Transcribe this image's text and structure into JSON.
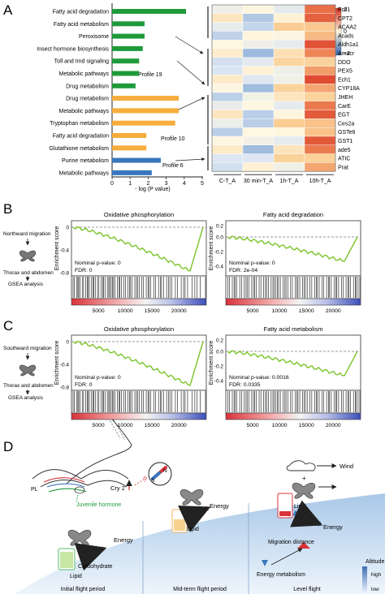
{
  "panel_letters": [
    "A",
    "B",
    "C",
    "D"
  ],
  "panelA": {
    "bar_labels": [
      "Fatty acid degradation",
      "Fatty acid metabolism",
      "Peroxisome",
      "Insect hormone biosynthesis",
      "Toll and Imd signaling",
      "Metabolic pathways",
      "Drug metabolism",
      "Drug metabolism",
      "Metabolic pathways",
      "Tryptophan metabolism",
      "Fatty acid degradation",
      "Glutathione metabolism",
      "Purine metabolism",
      "Metabolic pathways"
    ],
    "bar_values": [
      4.1,
      1.8,
      1.8,
      1.7,
      1.5,
      1.5,
      1.3,
      3.7,
      3.7,
      3.5,
      1.9,
      1.9,
      2.7,
      2.2
    ],
    "bar_groups": [
      "green",
      "green",
      "green",
      "green",
      "green",
      "green",
      "green",
      "orange",
      "orange",
      "orange",
      "orange",
      "orange",
      "blue",
      "blue"
    ],
    "colors": {
      "green": "#1f9a3a",
      "orange": "#f7ad3c",
      "blue": "#3877bd"
    },
    "profile_labels": [
      "Profile 19",
      "Profile 10",
      "Profile 6"
    ],
    "xaxis_ticks": [
      "0",
      "1",
      "2",
      "3",
      "4",
      "5"
    ],
    "xaxis_label": "- log (P value)",
    "genes": [
      "Ecil1",
      "CPT2",
      "ACAA2",
      "Acads",
      "Aldh1a1",
      "Amacr",
      "DDO",
      "PEX5",
      "Ech1",
      "CYP18A",
      "JHEH",
      "CarE",
      "EGT",
      "Ces2a",
      "GSTe6",
      "GST1",
      "ade5",
      "ATIC",
      "Prat"
    ],
    "heat_columns": [
      "C-T_A",
      "30 min-T_A",
      "1h-T_A",
      "10h-T_A"
    ],
    "legend_ticks": [
      "2",
      "0",
      "−2"
    ]
  },
  "panelB": {
    "side_lines": [
      "Northward migration",
      "Thorax and abdomen",
      "GSEA analysis"
    ],
    "plots": [
      {
        "title": "Oxidative phosphorylation",
        "stat1": "Nominal p-value: 0",
        "stat2": "FDR: 0"
      },
      {
        "title": "Fatty acid degradation",
        "stat1": "Nominal p-value: 0",
        "stat2": "FDR: 2e-04"
      }
    ]
  },
  "panelC": {
    "side_lines": [
      "Southward migration",
      "Thorax and abdomen",
      "GSEA analysis"
    ],
    "plots": [
      {
        "title": "Oxidative phosphorylation",
        "stat1": "Nominal p-value: 0",
        "stat2": "FDR: 0"
      },
      {
        "title": "Fatty acid metabolism",
        "stat1": "Nominal p-value: 0.0016",
        "stat2": "FDR: 0.0335"
      }
    ]
  },
  "gsea_axis": {
    "ylabel": "Enrichment score",
    "xticks": [
      "5000",
      "10000",
      "15000",
      "20000"
    ]
  },
  "panelD": {
    "pl": "PL",
    "cry": "Cry 2",
    "question": "?",
    "jh": "Juvenile hormone",
    "energy": "Energy",
    "carb": "Carbohydrate",
    "lipid": "Lipid",
    "wind": "Wind",
    "migration_distance": "Migration distance",
    "energy_metabolism": "Energy metabolism",
    "altitude": "Altitude",
    "high": "high",
    "low": "low",
    "compass_n": "N",
    "compass_s": "S",
    "periods": [
      "Initial flight period",
      "Mid-term flight period",
      "Level flight"
    ]
  }
}
